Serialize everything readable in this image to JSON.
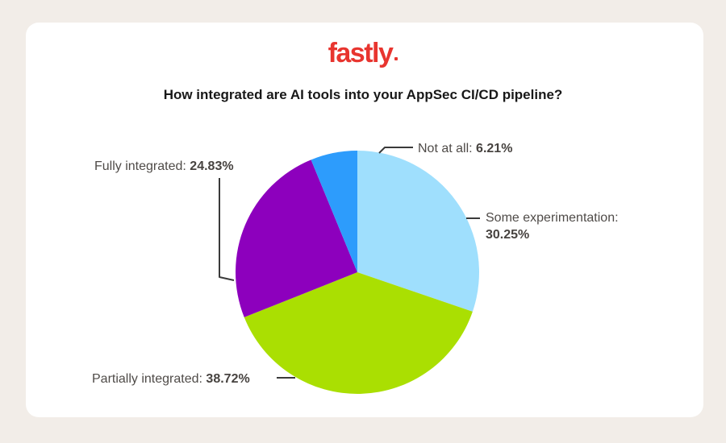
{
  "page": {
    "background_color": "#f2ede8",
    "card_color": "#ffffff"
  },
  "logo": {
    "text": "fastly",
    "color": "#e8352f"
  },
  "title": "How integrated are AI tools into your AppSec CI/CD pipeline?",
  "chart_data": {
    "type": "pie",
    "title": "How integrated are AI tools into your AppSec CI/CD pipeline?",
    "start_angle_deg": -90,
    "direction": "clockwise",
    "legend_position": "callout-labels",
    "slices": [
      {
        "id": "some-experimentation",
        "label": "Some experimentation",
        "value": 30.25,
        "color": "#9fdffd"
      },
      {
        "id": "partially-integrated",
        "label": "Partially integrated",
        "value": 38.72,
        "color": "#aadf02"
      },
      {
        "id": "fully-integrated",
        "label": "Fully integrated",
        "value": 24.83,
        "color": "#8d00bd"
      },
      {
        "id": "not-at-all",
        "label": "Not at all",
        "value": 6.21,
        "color": "#2d9cfc"
      }
    ]
  },
  "labels": {
    "fully_integrated": {
      "name": "Fully integrated:",
      "pct": "24.83%"
    },
    "not_at_all": {
      "name": "Not at all:",
      "pct": "6.21%"
    },
    "some_experimentation": {
      "name": "Some experimentation:",
      "pct": "30.25%"
    },
    "partially_integrated": {
      "name": "Partially integrated:",
      "pct": "38.72%"
    }
  }
}
